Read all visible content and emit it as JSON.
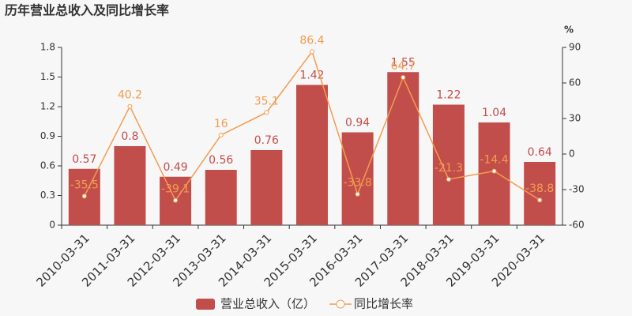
{
  "chart_data": {
    "type": "bar",
    "title": "历年营业总收入及同比增长率",
    "y2label": "%",
    "categories": [
      "2010-03-31",
      "2011-03-31",
      "2012-03-31",
      "2013-03-31",
      "2014-03-31",
      "2015-03-31",
      "2016-03-31",
      "2017-03-31",
      "2018-03-31",
      "2019-03-31",
      "2020-03-31"
    ],
    "series": [
      {
        "name": "营业总收入（亿）",
        "type": "bar",
        "color": "#c14e4b",
        "values": [
          0.57,
          0.8,
          0.49,
          0.56,
          0.76,
          1.42,
          0.94,
          1.55,
          1.22,
          1.04,
          0.64
        ]
      },
      {
        "name": "同比增长率",
        "type": "line",
        "axis": "y2",
        "color": "#f39c4f",
        "values": [
          -35.5,
          40.2,
          -39.1,
          16,
          35.1,
          86.4,
          -33.8,
          64.7,
          -21.3,
          -14.4,
          -38.8
        ]
      }
    ],
    "ylim": [
      0,
      1.8
    ],
    "yticks": [
      0,
      0.3,
      0.6,
      0.9,
      1.2,
      1.5,
      1.8
    ],
    "y2lim": [
      -60,
      90
    ],
    "y2ticks": [
      -60,
      -30,
      0,
      30,
      60,
      90
    ],
    "grid": false,
    "legend": "bottom"
  }
}
